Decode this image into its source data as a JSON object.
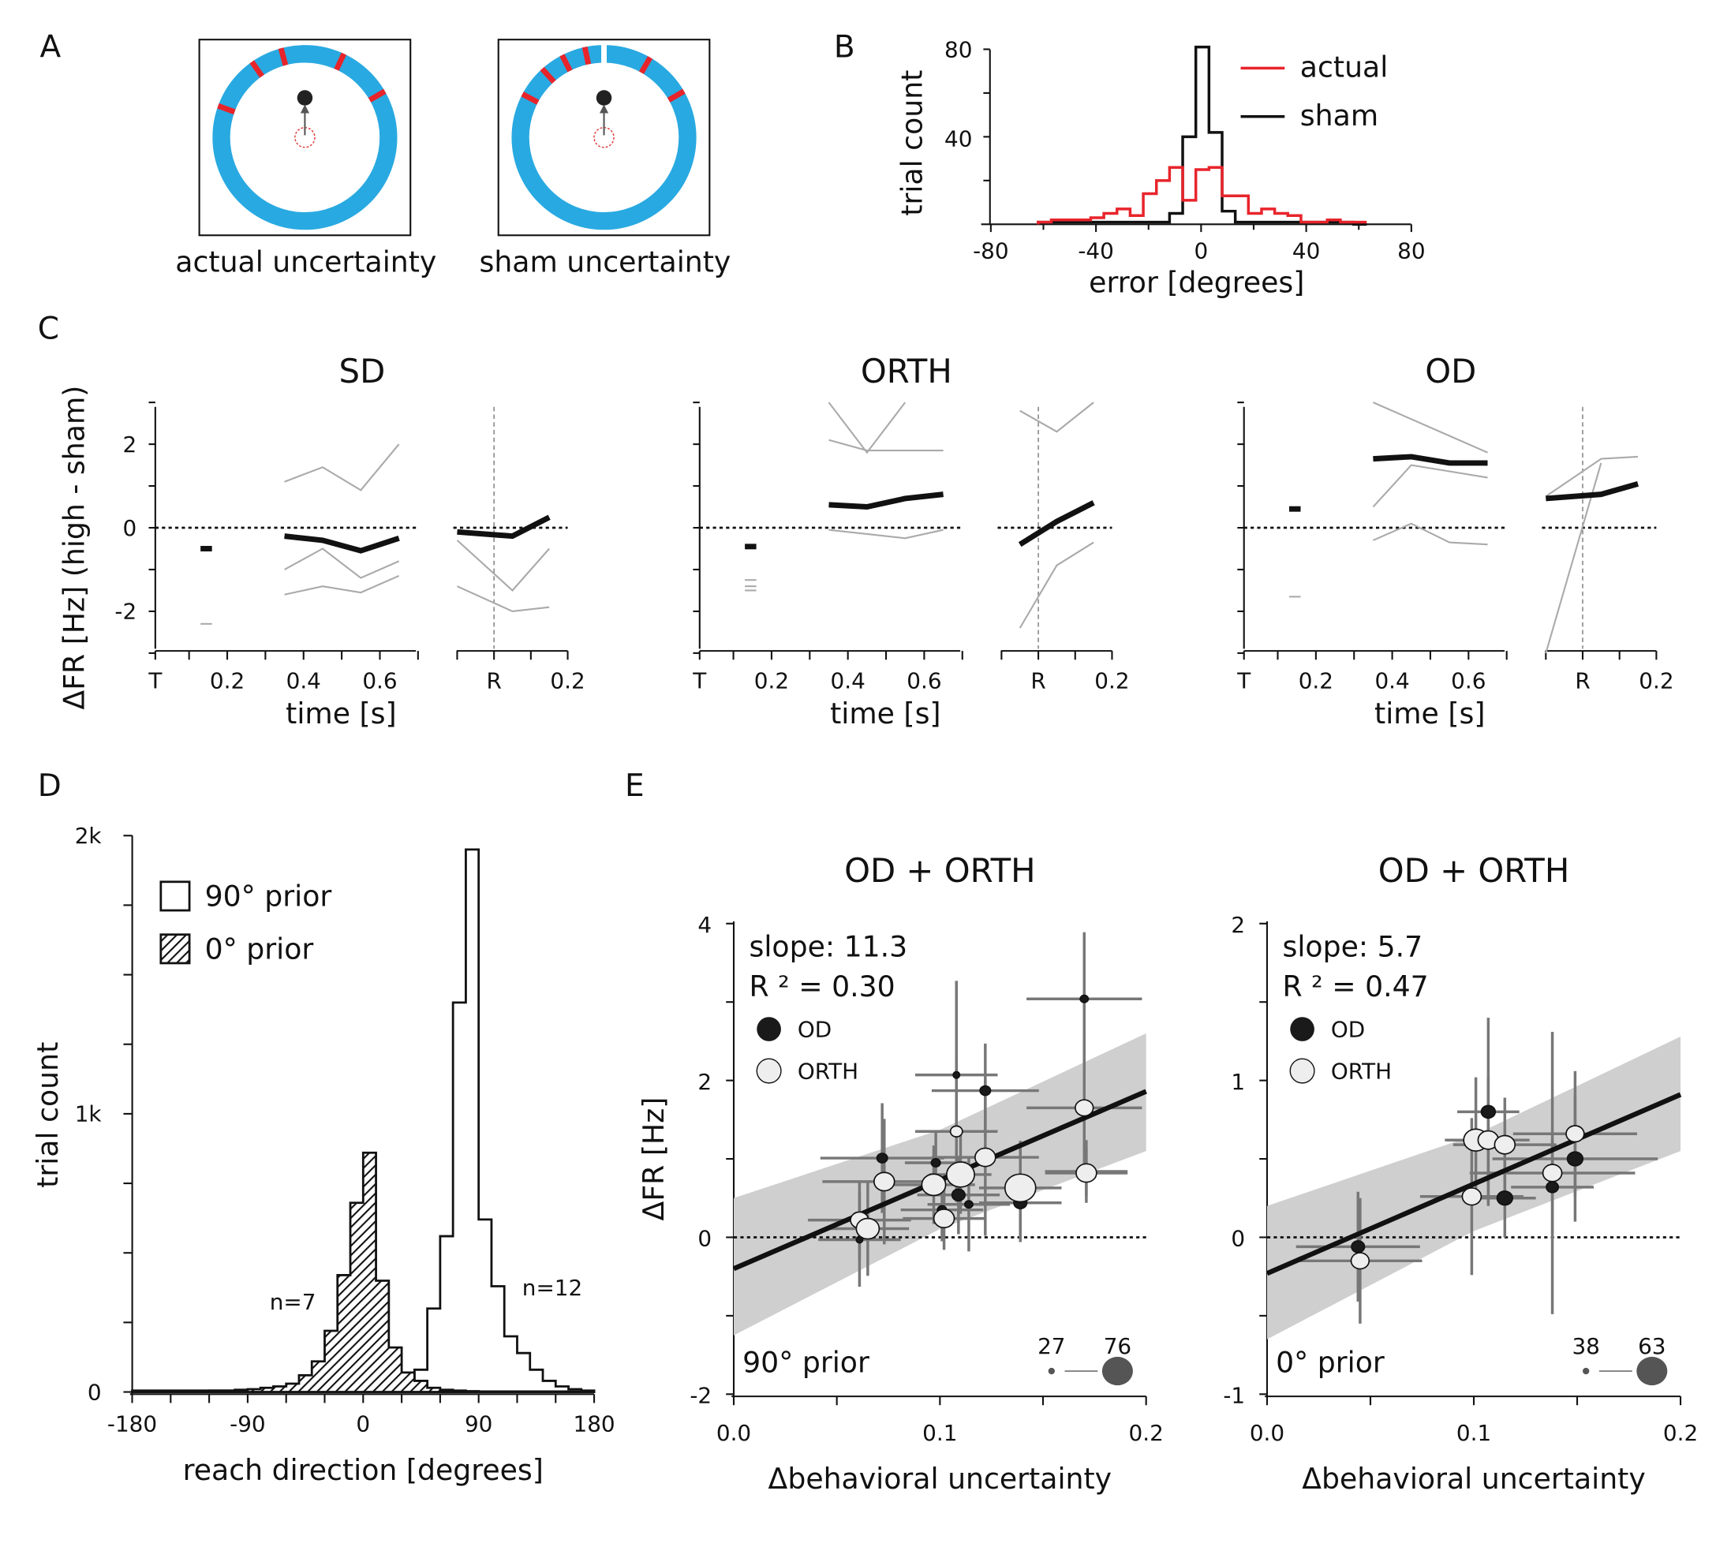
{
  "panel_labels": [
    "A",
    "B",
    "C",
    "D",
    "E"
  ],
  "chart_data": {
    "A": {
      "type": "diagram",
      "colors": {
        "ring": "#29a9e1",
        "mark": "#e8242b"
      },
      "rings": [
        {
          "caption": "actual uncertainty",
          "mark_angles_deg": [
            -70,
            -35,
            -15,
            25,
            60
          ],
          "gap_angles_deg": []
        },
        {
          "caption": "sham uncertainty",
          "mark_angles_deg": [
            -62,
            -42,
            -27,
            -12,
            30,
            60
          ],
          "gap_angles_deg": [
            0
          ]
        }
      ]
    },
    "B": {
      "type": "line",
      "xlabel": "error [degrees]",
      "ylabel": "trial count",
      "xlim": [
        -80,
        80
      ],
      "ylim": [
        0,
        80
      ],
      "xticks": [
        "-80",
        "-40",
        "0",
        "40",
        "80"
      ],
      "yticks": [
        "40",
        "80"
      ],
      "legend": [
        "actual",
        "sham"
      ],
      "legend_placement": "top-right",
      "bin_edges": [
        -62,
        -57,
        -52,
        -47,
        -42,
        -37,
        -32,
        -27,
        -22,
        -17,
        -12,
        -7,
        -2,
        3,
        8,
        13,
        18,
        23,
        28,
        33,
        38,
        43,
        48,
        53,
        58,
        63
      ],
      "series": [
        {
          "name": "actual",
          "color": "#e8242b",
          "values": [
            1,
            2,
            2,
            2,
            3,
            5,
            7,
            4,
            14,
            20,
            26,
            11,
            25,
            26,
            13,
            13,
            5,
            7,
            5,
            4,
            1,
            1,
            2,
            1,
            1
          ]
        },
        {
          "name": "sham",
          "color": "#111111",
          "values": [
            1,
            1,
            1,
            1,
            1,
            1,
            1,
            1,
            1,
            1,
            5,
            40,
            81,
            42,
            6,
            1,
            1,
            1,
            1,
            1,
            1,
            1,
            1,
            1,
            0
          ]
        }
      ]
    },
    "C": {
      "type": "line",
      "ylabel": "ΔFR [Hz] (high - sham)",
      "xlabel": "time  [s]",
      "ylim": [
        -3,
        3
      ],
      "yticks": [
        "-2",
        "0",
        "2"
      ],
      "xticks_target": [
        "T",
        "0.2",
        "0.4",
        "0.6"
      ],
      "xticks_reach": [
        "R",
        "0.2"
      ],
      "subplots": [
        {
          "title": "SD",
          "early": {
            "mean": -0.5,
            "indiv": [
              -2.3
            ]
          },
          "mid_t": [
            0.35,
            0.45,
            0.55,
            0.65
          ],
          "mid_mean": [
            -0.2,
            -0.3,
            -0.55,
            -0.25
          ],
          "mid_indiv": [
            [
              1.1,
              1.45,
              0.9,
              2.0
            ],
            [
              -1.0,
              -0.5,
              -1.2,
              -0.8
            ],
            [
              -1.6,
              -1.4,
              -1.55,
              -1.15
            ]
          ],
          "late_t": [
            -0.1,
            0.05,
            0.15
          ],
          "late_mean": [
            -0.1,
            -0.2,
            0.25
          ],
          "late_indiv": [
            [
              -0.3,
              -1.5,
              -0.5
            ],
            [
              -1.4,
              -2.0,
              -1.9
            ]
          ]
        },
        {
          "title": "ORTH",
          "early": {
            "mean": -0.45,
            "indiv": [
              -1.25,
              -1.4,
              -1.5
            ]
          },
          "mid_t": [
            0.35,
            0.45,
            0.55,
            0.65
          ],
          "mid_mean": [
            0.55,
            0.5,
            0.7,
            0.8
          ],
          "mid_indiv": [
            [
              3.0,
              1.8,
              3.0
            ],
            [
              2.1,
              1.85,
              1.85,
              1.85
            ],
            [
              -0.05,
              -0.15,
              -0.25,
              -0.05
            ]
          ],
          "late_t": [
            -0.05,
            0.05,
            0.15
          ],
          "late_mean": [
            -0.4,
            0.15,
            0.6
          ],
          "late_indiv": [
            [
              -2.4,
              -0.9,
              -0.35
            ],
            [
              2.8,
              2.3,
              3.0
            ]
          ]
        },
        {
          "title": "OD",
          "early": {
            "mean": 0.45,
            "indiv": [
              -1.65
            ]
          },
          "mid_t": [
            0.35,
            0.45,
            0.55,
            0.65
          ],
          "mid_mean": [
            1.65,
            1.7,
            1.55,
            1.55
          ],
          "mid_indiv": [
            [
              -0.3,
              0.1,
              -0.35,
              -0.4
            ],
            [
              0.5,
              1.5,
              1.35,
              1.2
            ],
            [
              3.0,
              2.6,
              2.2,
              1.8
            ]
          ],
          "late_t": [
            -0.1,
            0.05,
            0.15
          ],
          "late_mean": [
            0.7,
            0.8,
            1.05
          ],
          "late_indiv": [
            [
              0.75,
              1.65,
              1.7
            ],
            [
              -3.0,
              1.55
            ]
          ]
        }
      ]
    },
    "D": {
      "type": "bar",
      "xlabel": "reach direction [degrees]",
      "ylabel": "trial count",
      "xlim": [
        -180,
        180
      ],
      "ylim": [
        0,
        2000
      ],
      "xticks": [
        "-180",
        "-90",
        "0",
        "90",
        "180"
      ],
      "yticks": [
        "0",
        "1k",
        "2k"
      ],
      "bin_edges": [
        -180,
        -170,
        -160,
        -150,
        -140,
        -130,
        -120,
        -110,
        -100,
        -90,
        -80,
        -70,
        -60,
        -50,
        -40,
        -30,
        -20,
        -10,
        0,
        10,
        20,
        30,
        40,
        50,
        60,
        70,
        80,
        90,
        100,
        110,
        120,
        130,
        140,
        150,
        160,
        170,
        180
      ],
      "series": [
        {
          "name": "90° prior",
          "style": "open",
          "annotation": "n=12",
          "values": [
            5,
            5,
            5,
            5,
            5,
            5,
            5,
            5,
            5,
            5,
            5,
            8,
            10,
            10,
            12,
            15,
            18,
            20,
            20,
            25,
            30,
            40,
            80,
            300,
            560,
            1400,
            1950,
            620,
            380,
            200,
            140,
            80,
            40,
            20,
            10,
            5
          ]
        },
        {
          "name": "0° prior",
          "style": "hatched",
          "annotation": "n=7",
          "values": [
            2,
            2,
            2,
            2,
            3,
            3,
            5,
            5,
            8,
            10,
            15,
            20,
            30,
            60,
            110,
            220,
            420,
            680,
            860,
            400,
            160,
            70,
            40,
            15,
            8,
            5,
            3,
            2,
            2,
            2,
            2,
            2,
            2,
            2,
            2,
            2
          ]
        }
      ]
    },
    "E": [
      {
        "title": "OD  + ORTH",
        "slope_text": "slope: 11.3",
        "r2_text": "R ² = 0.30",
        "prior": "90° prior",
        "xlabel": "Δbehavioral uncertainty",
        "ylabel": "ΔFR [Hz]",
        "xlim": [
          0,
          0.2
        ],
        "ylim": [
          -2,
          4
        ],
        "xticks": [
          "0.0",
          "0.1",
          "0.2"
        ],
        "yticks": [
          "-2",
          "0",
          "2",
          "4"
        ],
        "fit": {
          "intercept": -0.4,
          "slope": 11.3,
          "ci_low": [
            -1.25,
            1.1
          ],
          "ci_high": [
            0.5,
            2.6
          ]
        },
        "size_legend": [
          "27",
          "76"
        ],
        "legend": [
          "OD",
          "ORTH"
        ],
        "points": [
          {
            "g": "OD",
            "x": 0.17,
            "y": 3.04,
            "xe": 0.028,
            "ye": 0.85,
            "n": 30
          },
          {
            "g": "OD",
            "x": 0.108,
            "y": 2.07,
            "xe": 0.02,
            "ye": 1.2,
            "n": 27
          },
          {
            "g": "OD",
            "x": 0.122,
            "y": 1.87,
            "xe": 0.026,
            "ye": 0.6,
            "n": 35
          },
          {
            "g": "OD",
            "x": 0.072,
            "y": 1.01,
            "xe": 0.03,
            "ye": 0.7,
            "n": 35
          },
          {
            "g": "OD",
            "x": 0.098,
            "y": 0.95,
            "xe": 0.015,
            "ye": 0.4,
            "n": 32
          },
          {
            "g": "OD",
            "x": 0.109,
            "y": 0.54,
            "xe": 0.02,
            "ye": 0.5,
            "n": 40
          },
          {
            "g": "OD",
            "x": 0.114,
            "y": 0.42,
            "xe": 0.02,
            "ye": 0.6,
            "n": 30
          },
          {
            "g": "OD",
            "x": 0.101,
            "y": 0.35,
            "xe": 0.02,
            "ye": 0.4,
            "n": 32
          },
          {
            "g": "OD",
            "x": 0.139,
            "y": 0.44,
            "xe": 0.02,
            "ye": 0.5,
            "n": 40
          },
          {
            "g": "OD",
            "x": 0.171,
            "y": 0.84,
            "xe": 0.02,
            "ye": 0.4,
            "n": 35
          },
          {
            "g": "OD",
            "x": 0.061,
            "y": -0.03,
            "xe": 0.02,
            "ye": 0.6,
            "n": 27
          },
          {
            "g": "ORTH",
            "x": 0.17,
            "y": 1.65,
            "xe": 0.028,
            "ye": 0.9,
            "n": 50
          },
          {
            "g": "ORTH",
            "x": 0.108,
            "y": 1.35,
            "xe": 0.02,
            "ye": 0.9,
            "n": 38
          },
          {
            "g": "ORTH",
            "x": 0.122,
            "y": 1.02,
            "xe": 0.026,
            "ye": 1.0,
            "n": 55
          },
          {
            "g": "ORTH",
            "x": 0.073,
            "y": 0.71,
            "xe": 0.03,
            "ye": 0.8,
            "n": 55
          },
          {
            "g": "ORTH",
            "x": 0.097,
            "y": 0.67,
            "xe": 0.02,
            "ye": 0.5,
            "n": 62
          },
          {
            "g": "ORTH",
            "x": 0.11,
            "y": 0.8,
            "xe": 0.015,
            "ye": 0.5,
            "n": 70
          },
          {
            "g": "ORTH",
            "x": 0.139,
            "y": 0.63,
            "xe": 0.02,
            "ye": 0.6,
            "n": 76
          },
          {
            "g": "ORTH",
            "x": 0.102,
            "y": 0.24,
            "xe": 0.02,
            "ye": 0.4,
            "n": 55
          },
          {
            "g": "ORTH",
            "x": 0.061,
            "y": 0.22,
            "xe": 0.025,
            "ye": 0.5,
            "n": 50
          },
          {
            "g": "ORTH",
            "x": 0.065,
            "y": 0.11,
            "xe": 0.02,
            "ye": 0.6,
            "n": 60
          },
          {
            "g": "ORTH",
            "x": 0.171,
            "y": 0.82,
            "xe": 0.02,
            "ye": 0.3,
            "n": 55
          }
        ]
      },
      {
        "title": "OD + ORTH",
        "slope_text": "slope: 5.7",
        "r2_text": "R ² = 0.47",
        "prior": "0° prior",
        "xlabel": "Δbehavioral uncertainty",
        "ylabel": "",
        "xlim": [
          0,
          0.2
        ],
        "ylim": [
          -1,
          2
        ],
        "xticks": [
          "0.0",
          "0.1",
          "0.2"
        ],
        "yticks": [
          "-1",
          "0",
          "1",
          "2"
        ],
        "fit": {
          "intercept": -0.23,
          "slope": 5.7,
          "ci_low": [
            -0.65,
            0.55
          ],
          "ci_high": [
            0.2,
            1.28
          ]
        },
        "size_legend": [
          "38",
          "63"
        ],
        "legend": [
          "OD",
          "ORTH"
        ],
        "points": [
          {
            "g": "OD",
            "x": 0.107,
            "y": 0.8,
            "xe": 0.015,
            "ye": 0.6,
            "n": 42
          },
          {
            "g": "OD",
            "x": 0.149,
            "y": 0.5,
            "xe": 0.04,
            "ye": 0.4,
            "n": 45
          },
          {
            "g": "OD",
            "x": 0.115,
            "y": 0.25,
            "xe": 0.015,
            "ye": 0.25,
            "n": 45
          },
          {
            "g": "OD",
            "x": 0.138,
            "y": 0.32,
            "xe": 0.02,
            "ye": 0.3,
            "n": 38
          },
          {
            "g": "OD",
            "x": 0.044,
            "y": -0.06,
            "xe": 0.03,
            "ye": 0.35,
            "n": 40
          },
          {
            "g": "ORTH",
            "x": 0.101,
            "y": 0.62,
            "xe": 0.015,
            "ye": 0.4,
            "n": 63
          },
          {
            "g": "ORTH",
            "x": 0.107,
            "y": 0.62,
            "xe": 0.02,
            "ye": 0.4,
            "n": 55
          },
          {
            "g": "ORTH",
            "x": 0.115,
            "y": 0.59,
            "xe": 0.025,
            "ye": 0.3,
            "n": 55
          },
          {
            "g": "ORTH",
            "x": 0.149,
            "y": 0.66,
            "xe": 0.03,
            "ye": 0.4,
            "n": 50
          },
          {
            "g": "ORTH",
            "x": 0.138,
            "y": 0.41,
            "xe": 0.04,
            "ye": 0.9,
            "n": 52
          },
          {
            "g": "ORTH",
            "x": 0.099,
            "y": 0.26,
            "xe": 0.025,
            "ye": 0.5,
            "n": 52
          },
          {
            "g": "ORTH",
            "x": 0.045,
            "y": -0.15,
            "xe": 0.03,
            "ye": 0.4,
            "n": 50
          }
        ]
      }
    ]
  }
}
